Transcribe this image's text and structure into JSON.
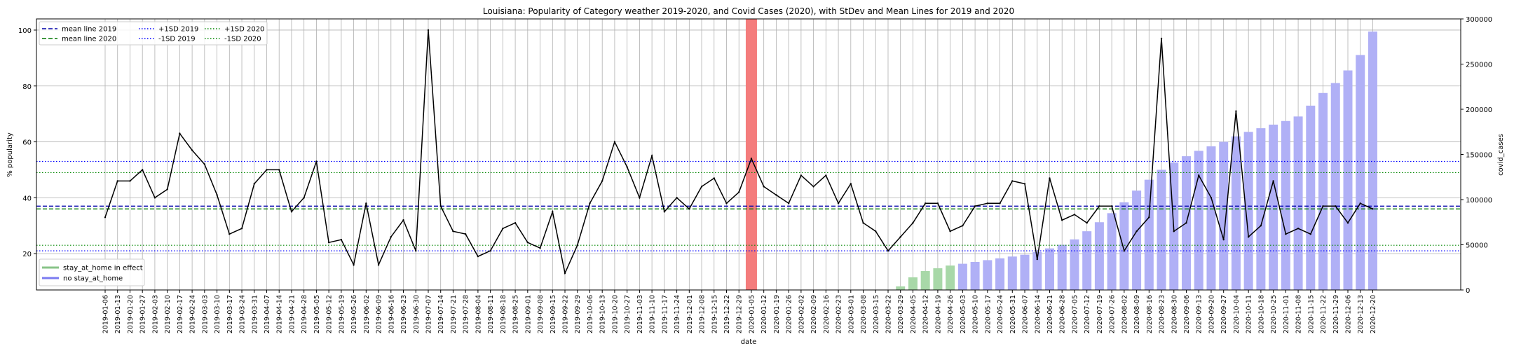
{
  "chart_data": {
    "type": "bar+line",
    "title": "Louisiana: Popularity of Category weather 2019-2020, and Covid Cases (2020), with StDev and Mean Lines for 2019 and 2020",
    "xlabel": "date",
    "ylabel_left": "% popularity",
    "ylabel_right": "covid_cases",
    "ylim_left": [
      7,
      104
    ],
    "ylim_right": [
      0,
      300000
    ],
    "yticks_left": [
      "20",
      "40",
      "60",
      "80",
      "100"
    ],
    "yticks_right": [
      "0",
      "50000",
      "100000",
      "150000",
      "200000",
      "250000",
      "300000"
    ],
    "grid": true,
    "x": [
      "2019-01-06",
      "2019-01-13",
      "2019-01-20",
      "2019-01-27",
      "2019-02-03",
      "2019-02-10",
      "2019-02-17",
      "2019-02-24",
      "2019-03-03",
      "2019-03-10",
      "2019-03-17",
      "2019-03-24",
      "2019-03-31",
      "2019-04-07",
      "2019-04-14",
      "2019-04-21",
      "2019-04-28",
      "2019-05-05",
      "2019-05-12",
      "2019-05-19",
      "2019-05-26",
      "2019-06-02",
      "2019-06-09",
      "2019-06-16",
      "2019-06-23",
      "2019-06-30",
      "2019-07-07",
      "2019-07-14",
      "2019-07-21",
      "2019-07-28",
      "2019-08-04",
      "2019-08-11",
      "2019-08-18",
      "2019-08-25",
      "2019-09-01",
      "2019-09-08",
      "2019-09-15",
      "2019-09-22",
      "2019-09-29",
      "2019-10-06",
      "2019-10-13",
      "2019-10-20",
      "2019-10-27",
      "2019-11-03",
      "2019-11-10",
      "2019-11-17",
      "2019-11-24",
      "2019-12-01",
      "2019-12-08",
      "2019-12-15",
      "2019-12-22",
      "2019-12-29",
      "2020-01-05",
      "2020-01-12",
      "2020-01-19",
      "2020-01-26",
      "2020-02-02",
      "2020-02-09",
      "2020-02-16",
      "2020-02-23",
      "2020-03-01",
      "2020-03-08",
      "2020-03-15",
      "2020-03-22",
      "2020-03-29",
      "2020-04-05",
      "2020-04-12",
      "2020-04-19",
      "2020-04-26",
      "2020-05-03",
      "2020-05-10",
      "2020-05-17",
      "2020-05-24",
      "2020-05-31",
      "2020-06-07",
      "2020-06-14",
      "2020-06-21",
      "2020-06-28",
      "2020-07-05",
      "2020-07-12",
      "2020-07-19",
      "2020-07-26",
      "2020-08-02",
      "2020-08-09",
      "2020-08-16",
      "2020-08-23",
      "2020-08-30",
      "2020-09-06",
      "2020-09-13",
      "2020-09-20",
      "2020-09-27",
      "2020-10-04",
      "2020-10-11",
      "2020-10-18",
      "2020-10-25",
      "2020-11-01",
      "2020-11-08",
      "2020-11-15",
      "2020-11-22",
      "2020-11-29",
      "2020-12-06",
      "2020-12-13",
      "2020-12-20"
    ],
    "popularity": [
      33,
      46,
      46,
      50,
      40,
      43,
      63,
      57,
      52,
      41,
      27,
      29,
      45,
      50,
      50,
      35,
      40,
      53,
      24,
      25,
      16,
      38,
      16,
      26,
      32,
      21,
      100,
      37,
      28,
      27,
      19,
      21,
      29,
      31,
      24,
      22,
      35,
      13,
      23,
      38,
      46,
      60,
      51,
      40,
      55,
      35,
      40,
      36,
      44,
      47,
      38,
      42,
      54,
      44,
      41,
      38,
      48,
      44,
      48,
      38,
      45,
      31,
      28,
      21,
      26,
      31,
      38,
      38,
      28,
      30,
      37,
      38,
      38,
      46,
      45,
      18,
      47,
      32,
      34,
      31,
      37,
      37,
      21,
      28,
      33,
      97,
      28,
      31,
      48,
      40,
      25,
      71,
      26,
      30,
      46,
      27,
      29,
      27,
      37,
      37,
      31,
      38,
      36
    ],
    "covid_cases": [
      0,
      0,
      0,
      0,
      0,
      0,
      0,
      0,
      0,
      0,
      0,
      0,
      0,
      0,
      0,
      0,
      0,
      0,
      0,
      0,
      0,
      0,
      0,
      0,
      0,
      0,
      0,
      0,
      0,
      0,
      0,
      0,
      0,
      0,
      0,
      0,
      0,
      0,
      0,
      0,
      0,
      0,
      0,
      0,
      0,
      0,
      0,
      0,
      0,
      0,
      0,
      0,
      0,
      0,
      0,
      0,
      0,
      0,
      0,
      0,
      0,
      0,
      0,
      0,
      4000,
      14000,
      21000,
      24000,
      27000,
      29000,
      31000,
      33000,
      35000,
      37000,
      39000,
      42000,
      46000,
      50000,
      56000,
      65000,
      75000,
      85000,
      97000,
      110000,
      122000,
      133000,
      141000,
      148000,
      154000,
      159000,
      164000,
      170000,
      175000,
      179000,
      183000,
      187000,
      192000,
      204000,
      218000,
      229000,
      243000,
      260000,
      286000
    ],
    "stay_at_home_start": "2020-03-29",
    "stay_at_home_end": "2020-04-26",
    "highlight_date": "2020-01-05",
    "mean_2019": 37,
    "mean_2020": 36,
    "plus_1sd_2019": 53,
    "minus_1sd_2019": 21,
    "plus_1sd_2020": 49,
    "minus_1sd_2020": 23,
    "legend_lines": [
      {
        "label": "mean line 2019",
        "color": "#0000aa",
        "dash": "dashed"
      },
      {
        "label": "mean line 2020",
        "color": "#007700",
        "dash": "dashed"
      },
      {
        "label": "+1SD 2019",
        "color": "#0000ff",
        "dash": "dotted"
      },
      {
        "label": "-1SD 2019",
        "color": "#0000ff",
        "dash": "dotted"
      },
      {
        "label": "+1SD 2020",
        "color": "#008800",
        "dash": "dotted"
      },
      {
        "label": "-1SD 2020",
        "color": "#008800",
        "dash": "dotted"
      }
    ],
    "legend_bars": [
      {
        "label": "stay_at_home in effect",
        "color": "#88c488"
      },
      {
        "label": "no stay_at_home",
        "color": "#7b7bf0"
      }
    ],
    "legend_lines_position": "upper-left",
    "legend_bars_position": "lower-left",
    "colors": {
      "popularity_line": "#000000",
      "bar_stay_at_home": "#a8d8a8",
      "bar_no_stay_at_home": "#b0b0f6",
      "highlight": "#f47c7c",
      "grid": "#b0b0b0"
    }
  }
}
